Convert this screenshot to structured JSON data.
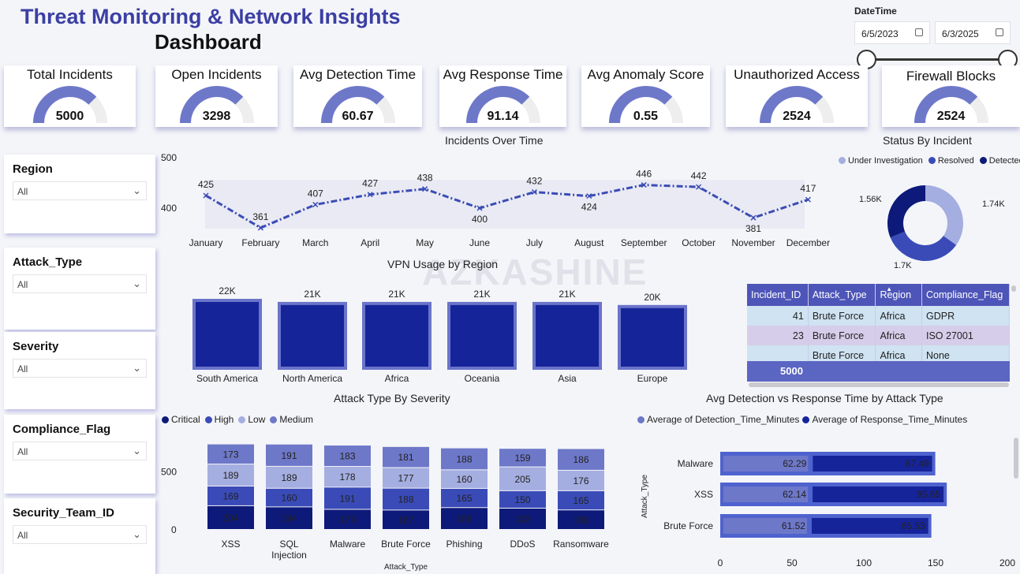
{
  "header": {
    "title": "Threat Monitoring & Network Insights",
    "subtitle": "Dashboard"
  },
  "watermark": "AZKASHINE",
  "datetime": {
    "label": "DateTime",
    "start": "6/5/2023",
    "end": "6/3/2025"
  },
  "kpis": [
    {
      "label": "Total Incidents",
      "value": "5000",
      "fill": 0.75
    },
    {
      "label": "Open Incidents",
      "value": "3298",
      "fill": 0.75
    },
    {
      "label": "Avg Detection Time",
      "value": "60.67",
      "fill": 0.75
    },
    {
      "label": "Avg Response Time",
      "value": "91.14",
      "fill": 0.75
    },
    {
      "label": "Avg Anomaly Score",
      "value": "0.55",
      "fill": 0.75
    },
    {
      "label": "Unauthorized Access",
      "value": "2524",
      "fill": 0.75
    },
    {
      "label": "Firewall Blocks",
      "value": "2524",
      "fill": 0.75
    }
  ],
  "slicers": [
    {
      "title": "Region",
      "value": "All"
    },
    {
      "title": "Attack_Type",
      "value": "All"
    },
    {
      "title": "Severity",
      "value": "All"
    },
    {
      "title": "Compliance_Flag",
      "value": "All"
    },
    {
      "title": "Security_Team_ID",
      "value": "All"
    }
  ],
  "table": {
    "columns": [
      "Incident_ID",
      "Attack_Type",
      "Region",
      "Compliance_Flag"
    ],
    "rows": [
      [
        "41",
        "Brute Force",
        "Africa",
        "GDPR"
      ],
      [
        "23",
        "Brute Force",
        "Africa",
        "ISO 27001"
      ],
      [
        "",
        "Brute Force",
        "Africa",
        "None"
      ]
    ],
    "total": "5000"
  },
  "colors": {
    "dark": "#0d1a7a",
    "mid": "#3a4bb8",
    "light": "#8f9bd8",
    "pale": "#b4bde6",
    "accent": "#5865c9",
    "line": "#3b4cb5"
  },
  "chart_data": [
    {
      "id": "incidents_over_time",
      "type": "line",
      "title": "Incidents Over Time",
      "categories": [
        "January",
        "February",
        "March",
        "April",
        "May",
        "June",
        "July",
        "August",
        "September",
        "October",
        "November",
        "December"
      ],
      "values": [
        425,
        361,
        407,
        427,
        438,
        400,
        432,
        424,
        446,
        442,
        381,
        417
      ],
      "yticks": [
        "500",
        "400"
      ],
      "ylim": [
        300,
        500
      ]
    },
    {
      "id": "status_by_incident",
      "type": "pie",
      "title": "Status By Incident",
      "labels": [
        "Under Investigation",
        "Resolved",
        "Detected"
      ],
      "values": [
        1740,
        1700,
        1560
      ],
      "data_labels": [
        "1.74K",
        "1.7K",
        "1.56K"
      ]
    },
    {
      "id": "vpn_usage_by_region",
      "type": "bar",
      "title": "VPN Usage by Region",
      "categories": [
        "South America",
        "North America",
        "Africa",
        "Oceania",
        "Asia",
        "Europe"
      ],
      "values": [
        22000,
        21000,
        21000,
        21000,
        21000,
        20000
      ],
      "data_labels": [
        "22K",
        "21K",
        "21K",
        "21K",
        "21K",
        "20K"
      ]
    },
    {
      "id": "attack_type_by_severity",
      "type": "bar",
      "title": "Attack Type By Severity",
      "xlabel": "Attack_Type",
      "categories": [
        "XSS",
        "SQL Injection",
        "Malware",
        "Brute Force",
        "Phishing",
        "DDoS",
        "Ransomware"
      ],
      "series": [
        {
          "name": "Critical",
          "values": [
            204,
            194,
            173,
            167,
            188,
            183,
            168
          ]
        },
        {
          "name": "High",
          "values": [
            169,
            160,
            191,
            188,
            165,
            150,
            165
          ]
        },
        {
          "name": "Low",
          "values": [
            189,
            189,
            178,
            177,
            160,
            205,
            176
          ]
        },
        {
          "name": "Medium",
          "values": [
            173,
            191,
            183,
            181,
            188,
            159,
            186
          ]
        }
      ],
      "yticks": [
        "500",
        "0"
      ]
    },
    {
      "id": "detection_vs_response",
      "type": "bar",
      "title": "Avg Detection vs Response Time by Attack Type",
      "ylabel": "Attack_Type",
      "categories": [
        "Malware",
        "XSS",
        "Brute Force"
      ],
      "series": [
        {
          "name": "Average of Detection_Time_Minutes",
          "values": [
            62.29,
            62.14,
            61.52
          ]
        },
        {
          "name": "Average of Response_Time_Minutes",
          "values": [
            87.49,
            95.65,
            85.53
          ]
        }
      ],
      "xticks": [
        "0",
        "50",
        "100",
        "150",
        "200"
      ],
      "xlim": [
        0,
        200
      ]
    }
  ]
}
